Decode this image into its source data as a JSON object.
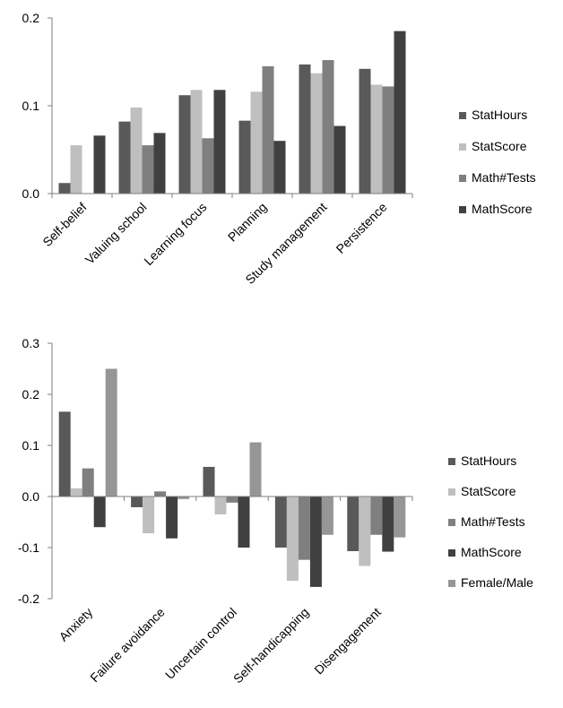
{
  "colors": {
    "StatHours": "#595959",
    "StatScore": "#bfbfbf",
    "MathTests": "#7f7f7f",
    "MathScore": "#404040",
    "FemaleMale": "#969696"
  },
  "chart_data": [
    {
      "type": "bar",
      "categories": [
        "Self-belief",
        "Valuing school",
        "Learning focus",
        "Planning",
        "Study management",
        "Persistence"
      ],
      "ylim": [
        0,
        0.2
      ],
      "yticks": [
        "0.0",
        "0.1",
        "0.2"
      ],
      "yticks_values": [
        0,
        0.1,
        0.2
      ],
      "series": [
        {
          "name": "StatHours",
          "color_key": "StatHours",
          "values": [
            0.012,
            0.082,
            0.112,
            0.083,
            0.147,
            0.142
          ]
        },
        {
          "name": "StatScore",
          "color_key": "StatScore",
          "values": [
            0.055,
            0.098,
            0.118,
            0.116,
            0.137,
            0.124
          ]
        },
        {
          "name": "Math#Tests",
          "color_key": "MathTests",
          "values": [
            0.0,
            0.055,
            0.063,
            0.145,
            0.152,
            0.122
          ]
        },
        {
          "name": "MathScore",
          "color_key": "MathScore",
          "values": [
            0.066,
            0.069,
            0.118,
            0.06,
            0.077,
            0.185
          ]
        }
      ],
      "legend_position": "right",
      "grid": false
    },
    {
      "type": "bar",
      "categories": [
        "Anxiety",
        "Failure avoidance",
        "Uncertain control",
        "Self-handicapping",
        "Disengagement"
      ],
      "ylim": [
        -0.2,
        0.3
      ],
      "yticks": [
        "-0.2",
        "-0.1",
        "0.0",
        "0.1",
        "0.2",
        "0.3"
      ],
      "yticks_values": [
        -0.2,
        -0.1,
        0,
        0.1,
        0.2,
        0.3
      ],
      "series": [
        {
          "name": "StatHours",
          "color_key": "StatHours",
          "values": [
            0.166,
            -0.021,
            0.058,
            -0.1,
            -0.107
          ]
        },
        {
          "name": "StatScore",
          "color_key": "StatScore",
          "values": [
            0.016,
            -0.072,
            -0.035,
            -0.165,
            -0.136
          ]
        },
        {
          "name": "Math#Tests",
          "color_key": "MathTests",
          "values": [
            0.055,
            0.01,
            -0.012,
            -0.124,
            -0.075
          ]
        },
        {
          "name": "MathScore",
          "color_key": "MathScore",
          "values": [
            -0.06,
            -0.082,
            -0.1,
            -0.177,
            -0.108
          ]
        },
        {
          "name": "Female/Male",
          "color_key": "FemaleMale",
          "values": [
            0.25,
            -0.005,
            0.106,
            -0.075,
            -0.08
          ]
        }
      ],
      "legend_position": "right",
      "grid": false
    }
  ]
}
